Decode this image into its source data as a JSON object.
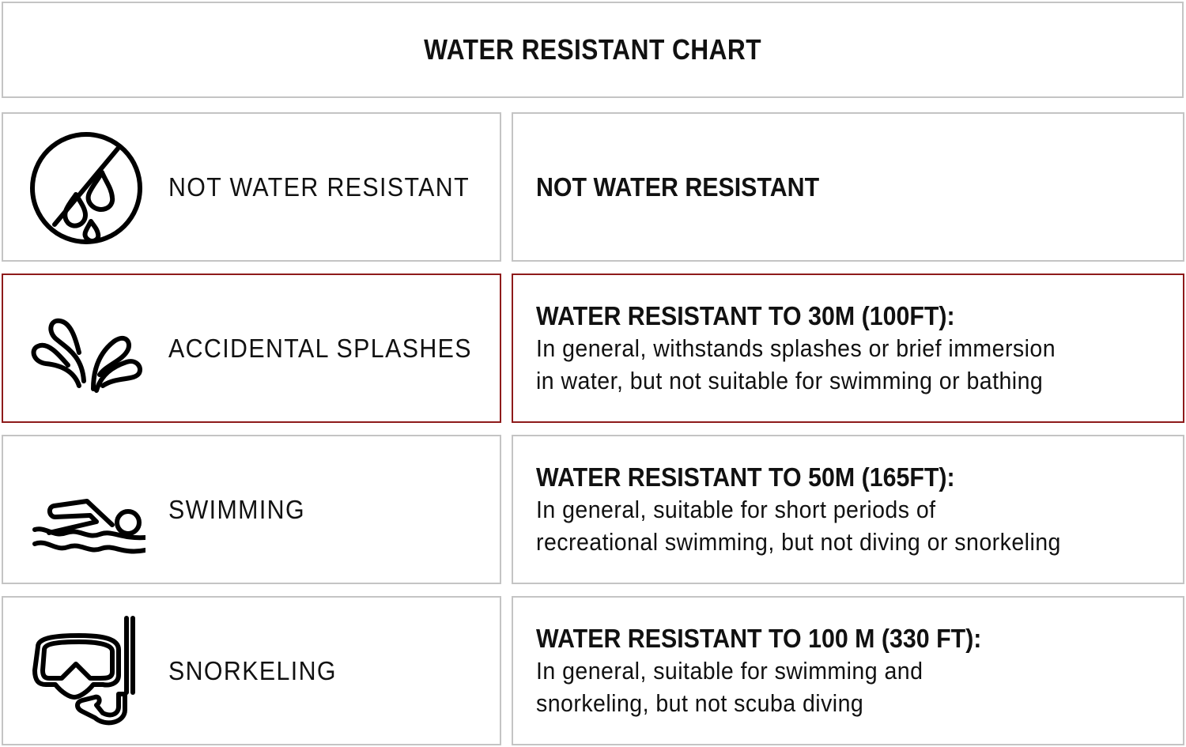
{
  "title": "WATER RESISTANT CHART",
  "colors": {
    "highlight_border": "#8e1b1b",
    "border": "#c4c4c4"
  },
  "rows": [
    {
      "icon": "no-water-drops-icon",
      "label": "NOT WATER RESISTANT",
      "heading": "NOT WATER RESISTANT",
      "body_lines": [],
      "highlighted": false
    },
    {
      "icon": "splash-icon",
      "label": "ACCIDENTAL SPLASHES",
      "heading": "WATER RESISTANT TO 30M (100FT):",
      "body_lines": [
        "In general, withstands splashes or brief immersion",
        "in water, but not suitable for swimming or bathing"
      ],
      "highlighted": true
    },
    {
      "icon": "swimmer-icon",
      "label": "SWIMMING",
      "heading": "WATER RESISTANT TO 50M (165FT):",
      "body_lines": [
        "In general, suitable for short periods of",
        "recreational swimming, but not diving or snorkeling"
      ],
      "highlighted": false
    },
    {
      "icon": "snorkel-mask-icon",
      "label": "SNORKELING",
      "heading": "WATER RESISTANT TO 100 M (330 FT):",
      "body_lines": [
        "In general, suitable for swimming and",
        "snorkeling, but not scuba diving"
      ],
      "highlighted": false
    }
  ]
}
